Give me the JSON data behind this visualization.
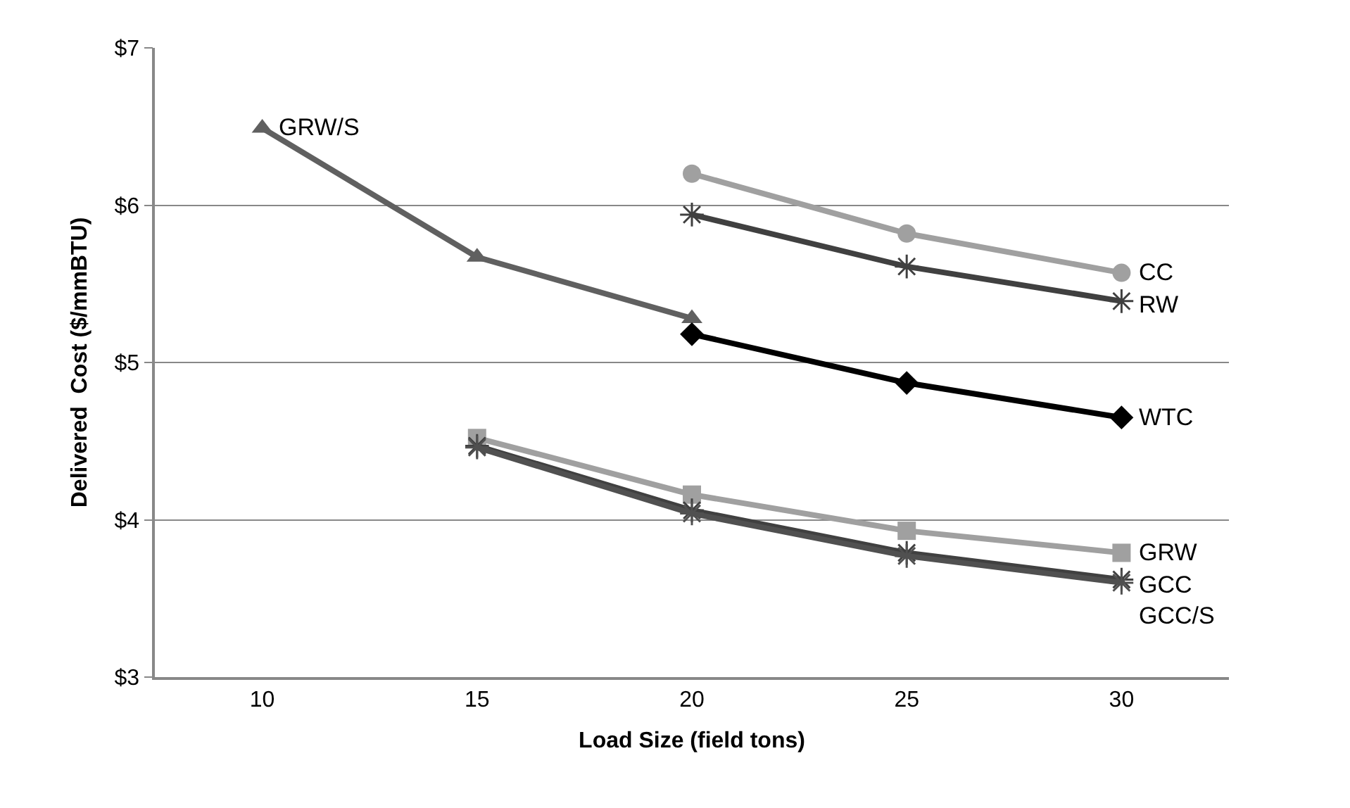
{
  "chart_data": {
    "type": "line",
    "xlabel": "Load Size (field tons)",
    "ylabel": "Delivered  Cost ($/mmBTU)",
    "xlim": [
      7.5,
      32.5
    ],
    "xticks": [
      10,
      15,
      20,
      25,
      30
    ],
    "ylim": [
      3,
      7
    ],
    "yticks": [
      {
        "value": 3,
        "label": "$3"
      },
      {
        "value": 4,
        "label": "$4"
      },
      {
        "value": 5,
        "label": "$5"
      },
      {
        "value": 6,
        "label": "$6"
      },
      {
        "value": 7,
        "label": "$7"
      }
    ],
    "grid": "y",
    "legend": false,
    "series": [
      {
        "name": "GRW/S",
        "color": "#606060",
        "marker": "triangle",
        "x": [
          10,
          15,
          20
        ],
        "values": [
          6.49,
          5.67,
          5.28
        ]
      },
      {
        "name": "CC",
        "color": "#a0a0a0",
        "marker": "circle",
        "x": [
          20,
          25,
          30
        ],
        "values": [
          6.2,
          5.82,
          5.57
        ]
      },
      {
        "name": "RW",
        "color": "#404040",
        "marker": "cross",
        "x": [
          20,
          25,
          30
        ],
        "values": [
          5.94,
          5.61,
          5.39
        ]
      },
      {
        "name": "WTC",
        "color": "#000000",
        "marker": "diamond",
        "x": [
          20,
          25,
          30
        ],
        "values": [
          5.18,
          4.87,
          4.65
        ]
      },
      {
        "name": "GRW",
        "color": "#a0a0a0",
        "marker": "square",
        "x": [
          15,
          20,
          25,
          30
        ],
        "values": [
          4.52,
          4.16,
          3.93,
          3.79
        ]
      },
      {
        "name": "GCC",
        "color": "#404040",
        "marker": "cross",
        "x": [
          15,
          20,
          25,
          30
        ],
        "values": [
          4.47,
          4.06,
          3.79,
          3.62
        ]
      },
      {
        "name": "GCC/S",
        "color": "#505050",
        "marker": "cross",
        "x": [
          15,
          20,
          25,
          30
        ],
        "values": [
          4.46,
          4.04,
          3.77,
          3.6
        ]
      }
    ]
  }
}
